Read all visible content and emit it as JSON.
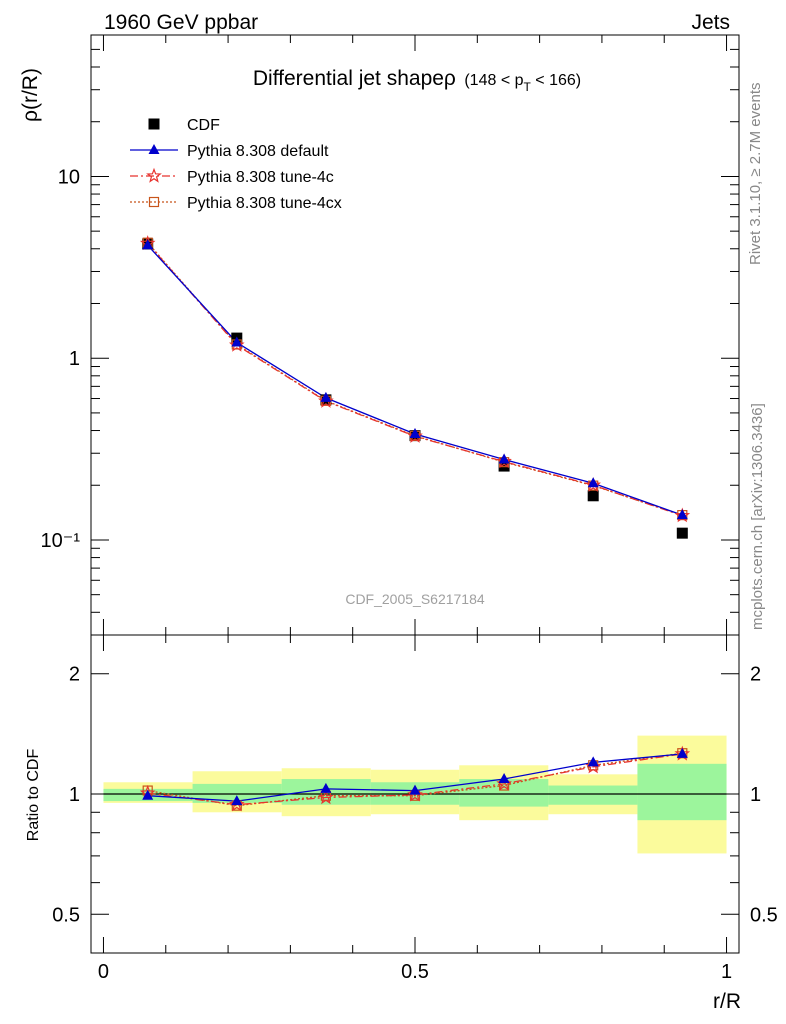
{
  "header": {
    "left": "1960 GeV ppbar",
    "right": "Jets"
  },
  "side_labels": {
    "rivet": "Rivet 3.1.10, ≥ 2.7M events",
    "mcplots": "mcplots.cern.ch [arXiv:1306.3436]"
  },
  "colors": {
    "cdf": "#000000",
    "default": "#0000cc",
    "tune4c": "#e8332e",
    "tune4cx": "#c8551b",
    "band_inner": "#9cf59c",
    "band_outer": "#fbfb9c"
  },
  "chart_data": [
    {
      "type": "line",
      "panel": "main",
      "title_main": "Differential jet shapeρ",
      "title_sub": "(148 < p_T < 166)",
      "ylabel": "ρ(r/R)",
      "xlabel": "",
      "y_log": true,
      "xlim": [
        -0.02,
        1.02
      ],
      "ylim": [
        0.03,
        60
      ],
      "y_ticks": [
        {
          "value": 0.1,
          "label": "10⁻¹"
        },
        {
          "value": 1,
          "label": "1"
        },
        {
          "value": 10,
          "label": "10"
        }
      ],
      "watermark": "CDF_2005_S6217184",
      "legend_position": "top-left",
      "x": [
        0.071,
        0.214,
        0.357,
        0.5,
        0.643,
        0.786,
        0.929
      ],
      "series": [
        {
          "name": "CDF",
          "key": "cdf",
          "marker": "square",
          "values": [
            4.25,
            1.29,
            0.59,
            0.375,
            0.255,
            0.175,
            0.109
          ]
        },
        {
          "name": "Pythia 8.308 default",
          "key": "default",
          "marker": "triangle",
          "line": "solid",
          "values": [
            4.18,
            1.22,
            0.605,
            0.383,
            0.277,
            0.205,
            0.137
          ]
        },
        {
          "name": "Pythia 8.308 tune-4c",
          "key": "tune4c",
          "marker": "star",
          "line": "dashdot",
          "values": [
            4.28,
            1.18,
            0.58,
            0.372,
            0.27,
            0.2,
            0.136
          ]
        },
        {
          "name": "Pythia 8.308 tune-4cx",
          "key": "tune4cx",
          "marker": "open-square",
          "line": "dotted",
          "values": [
            4.32,
            1.19,
            0.583,
            0.374,
            0.268,
            0.199,
            0.137
          ]
        }
      ]
    },
    {
      "type": "line",
      "panel": "ratio",
      "ylabel": "Ratio to CDF",
      "xlabel": "r/R",
      "y_log": true,
      "xlim": [
        -0.02,
        1.02
      ],
      "ylim": [
        0.4,
        2.5
      ],
      "y_ticks": [
        {
          "value": 0.5,
          "label": "0.5"
        },
        {
          "value": 1,
          "label": "1"
        },
        {
          "value": 2,
          "label": "2"
        }
      ],
      "x_ticks": [
        {
          "value": 0,
          "label": "0"
        },
        {
          "value": 0.5,
          "label": "0.5"
        },
        {
          "value": 1,
          "label": "1"
        }
      ],
      "bands": [
        {
          "x0": 0.0,
          "x1": 0.143,
          "outer": [
            0.95,
            1.07
          ],
          "inner": [
            0.96,
            1.03
          ]
        },
        {
          "x0": 0.143,
          "x1": 0.286,
          "outer": [
            0.9,
            1.14
          ],
          "inner": [
            0.95,
            1.06
          ]
        },
        {
          "x0": 0.286,
          "x1": 0.429,
          "outer": [
            0.88,
            1.16
          ],
          "inner": [
            0.94,
            1.09
          ]
        },
        {
          "x0": 0.429,
          "x1": 0.571,
          "outer": [
            0.89,
            1.15
          ],
          "inner": [
            0.94,
            1.07
          ]
        },
        {
          "x0": 0.571,
          "x1": 0.714,
          "outer": [
            0.86,
            1.18
          ],
          "inner": [
            0.93,
            1.09
          ]
        },
        {
          "x0": 0.714,
          "x1": 0.857,
          "outer": [
            0.89,
            1.12
          ],
          "inner": [
            0.94,
            1.05
          ]
        },
        {
          "x0": 0.857,
          "x1": 1.0,
          "outer": [
            0.71,
            1.4
          ],
          "inner": [
            0.86,
            1.19
          ]
        }
      ],
      "x": [
        0.071,
        0.214,
        0.357,
        0.5,
        0.643,
        0.786,
        0.929
      ],
      "series": [
        {
          "name": "Pythia 8.308 default",
          "key": "default",
          "marker": "triangle",
          "line": "solid",
          "values": [
            0.99,
            0.96,
            1.03,
            1.02,
            1.09,
            1.2,
            1.26
          ]
        },
        {
          "name": "Pythia 8.308 tune-4c",
          "key": "tune4c",
          "marker": "star",
          "line": "dashdot",
          "values": [
            1.005,
            0.94,
            0.98,
            0.995,
            1.06,
            1.17,
            1.26
          ]
        },
        {
          "name": "Pythia 8.308 tune-4cx",
          "key": "tune4cx",
          "marker": "open-square",
          "line": "dotted",
          "values": [
            1.02,
            0.935,
            0.99,
            0.99,
            1.05,
            1.18,
            1.265
          ]
        }
      ]
    }
  ]
}
